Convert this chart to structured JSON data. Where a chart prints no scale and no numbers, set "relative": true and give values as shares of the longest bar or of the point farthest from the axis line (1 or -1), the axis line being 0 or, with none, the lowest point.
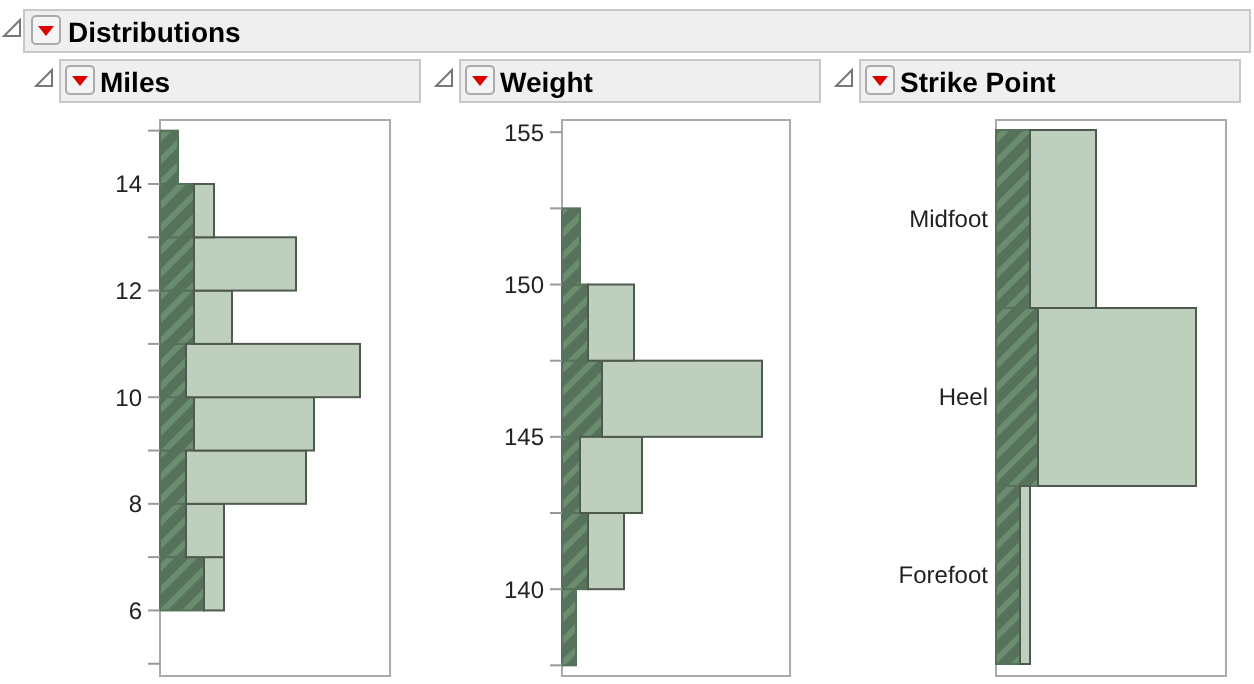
{
  "chart_data": [
    {
      "type": "bar",
      "title": "Miles",
      "annotations": [
        "Distributions"
      ],
      "orientation": "horizontal",
      "relative": true,
      "stacked": true,
      "x": [
        6.5,
        7.5,
        8.5,
        9.5,
        10.5,
        11.5,
        12.5,
        13.5,
        14.5
      ],
      "series": [
        {
          "color": "#56725a",
          "values": [
            0.22,
            0.13,
            0.13,
            0.17,
            0.13,
            0.17,
            0.17,
            0.17,
            0.09
          ]
        },
        {
          "color": "#bfcfbd",
          "values": [
            0.1,
            0.19,
            0.6,
            0.6,
            0.87,
            0.19,
            0.51,
            0.1,
            0
          ]
        }
      ],
      "ylim": [
        4.77,
        15.2
      ],
      "yticks": [
        {
          "value": 5,
          "label": null
        },
        6,
        {
          "value": 7,
          "label": null
        },
        8,
        {
          "value": 9,
          "label": null
        },
        10,
        {
          "value": 11,
          "label": null
        },
        12,
        {
          "value": 13,
          "label": null
        },
        14,
        {
          "value": 15,
          "label": null
        }
      ]
    },
    {
      "type": "bar",
      "title": "Weight",
      "orientation": "horizontal",
      "relative": true,
      "stacked": true,
      "x": [
        138.75,
        141.25,
        143.75,
        146.25,
        148.75,
        151.25
      ],
      "series": [
        {
          "color": "#56725a",
          "values": [
            0.07,
            0.13,
            0.09,
            0.2,
            0.13,
            0.09
          ]
        },
        {
          "color": "#bfcfbd",
          "values": [
            0,
            0.18,
            0.31,
            0.8,
            0.23,
            0
          ]
        }
      ],
      "ylim": [
        137.15,
        155.4
      ],
      "yticks": [
        {
          "value": 137.5,
          "label": null
        },
        140,
        {
          "value": 142.5,
          "label": null
        },
        145,
        {
          "value": 147.5,
          "label": null
        },
        150,
        {
          "value": 152.5,
          "label": null
        },
        155
      ]
    },
    {
      "type": "bar",
      "title": "Strike Point",
      "orientation": "horizontal",
      "relative": true,
      "stacked": true,
      "categories": [
        "Midfoot",
        "Heel",
        "Forefoot"
      ],
      "series": [
        {
          "color": "#56725a",
          "values": [
            0.17,
            0.21,
            0.12
          ]
        },
        {
          "color": "#bfcfbd",
          "values": [
            0.33,
            0.79,
            0.05
          ]
        }
      ]
    }
  ]
}
